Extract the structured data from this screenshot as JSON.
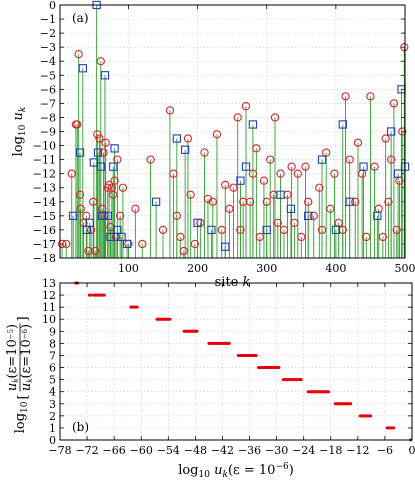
{
  "chart_data": [
    {
      "type": "scatter",
      "panel_label": "(a)",
      "xlabel": "site k",
      "ylabel": "log10 uk",
      "xlim": [
        1,
        500
      ],
      "ylim": [
        -18,
        0
      ],
      "xticks": [
        100,
        200,
        300,
        400,
        500
      ],
      "yticks": [
        0,
        -1,
        -2,
        -3,
        -4,
        -5,
        -6,
        -7,
        -8,
        -9,
        -10,
        -11,
        -12,
        -13,
        -14,
        -15,
        -16,
        -17,
        -18
      ],
      "grid": true,
      "stems": true,
      "colors": {
        "circle": "#d62728",
        "square": "#1f3fbf",
        "stem": "#2e9e2e"
      },
      "series": [
        {
          "marker": "circle",
          "x": [
            4,
            10,
            18,
            24,
            26,
            28,
            30,
            31,
            35,
            39,
            42,
            46,
            49,
            52,
            55,
            58,
            60,
            62,
            64,
            65,
            67,
            70,
            72,
            74,
            76,
            78,
            80,
            82,
            84,
            88,
            92,
            100,
            110,
            120,
            132,
            150,
            160,
            165,
            170,
            175,
            180,
            186,
            190,
            196,
            204,
            210,
            215,
            222,
            228,
            235,
            240,
            246,
            252,
            258,
            262,
            266,
            270,
            276,
            280,
            285,
            290,
            296,
            300,
            305,
            310,
            312,
            316,
            320,
            325,
            330,
            336,
            340,
            345,
            350,
            356,
            360,
            368,
            376,
            380,
            386,
            392,
            398,
            404,
            410,
            414,
            420,
            428,
            432,
            438,
            444,
            450,
            456,
            462,
            468,
            472,
            476,
            480,
            484,
            488,
            492,
            496,
            499
          ],
          "y": [
            -17,
            -17,
            -12,
            -8.5,
            -8.5,
            -3.5,
            -13.5,
            -14.5,
            -15.5,
            -15,
            -17.5,
            -16,
            -14,
            -17.5,
            -9.2,
            -9.5,
            -4,
            -14.5,
            -10.5,
            -15,
            -9.8,
            -13,
            -12.8,
            -15.8,
            -13,
            -13.5,
            -12.5,
            -16.5,
            -11,
            -15,
            -13,
            -17,
            -14.5,
            -17,
            -11,
            -16,
            -7.5,
            -12,
            -15,
            -16.5,
            -17.5,
            -9.5,
            -13.5,
            -17,
            -15.5,
            -10.5,
            -13.8,
            -14,
            -9.2,
            -16,
            -12.8,
            -14.5,
            -13,
            -8,
            -16,
            -14,
            -7.2,
            -14,
            -12,
            -10.2,
            -16.5,
            -12.5,
            -14,
            -11,
            -13.5,
            -8,
            -15.5,
            -12,
            -16,
            -13.5,
            -11.5,
            -15.5,
            -12,
            -16.5,
            -11.5,
            -14,
            -15,
            -13,
            -16,
            -10.5,
            -14.5,
            -12,
            -15.5,
            -16,
            -6.5,
            -11,
            -14,
            -9.8,
            -12,
            -16.5,
            -6.5,
            -11.5,
            -14.5,
            -16.5,
            -9.5,
            -14,
            -11,
            -7,
            -16,
            -12.5,
            -9,
            -3
          ]
        },
        {
          "marker": "square",
          "x": [
            20,
            30,
            34,
            40,
            44,
            50,
            54,
            56,
            60,
            62,
            66,
            70,
            74,
            78,
            80,
            84,
            90,
            98,
            140,
            170,
            182,
            200,
            220,
            240,
            262,
            270,
            280,
            300,
            320,
            335,
            360,
            380,
            400,
            410,
            420,
            440,
            460,
            480,
            490,
            495,
            500
          ],
          "y": [
            -15,
            -10.5,
            -4.5,
            -16,
            -15.5,
            -11.2,
            0,
            -10.5,
            -11.5,
            -15,
            -5,
            -15,
            -16.5,
            -11.5,
            -10.2,
            -16,
            -16.5,
            -17,
            -14,
            -9.5,
            -10.3,
            -15.5,
            -16,
            -17.2,
            -12.5,
            -11.5,
            -8.5,
            -16,
            -13.5,
            -14.5,
            -15,
            -11,
            -16,
            -8.5,
            -14,
            -11.5,
            -15,
            -9,
            -12,
            -6,
            -11.5
          ]
        }
      ]
    },
    {
      "type": "scatter",
      "panel_label": "(b)",
      "xlabel": "log10 uk(ε = 10−6)",
      "ylabel_pre": "log10",
      "ylabel_num": "uk(ε=10−5)",
      "ylabel_den": "uk(ε=10−6)",
      "xlim": [
        -78,
        0
      ],
      "ylim": [
        0,
        13
      ],
      "xticks": [
        -78,
        -72,
        -66,
        -60,
        -54,
        -48,
        -42,
        -36,
        -30,
        -24,
        -18,
        -12,
        -6,
        0
      ],
      "yticks": [
        0,
        1,
        2,
        3,
        4,
        5,
        6,
        7,
        8,
        9,
        10,
        11,
        12,
        13
      ],
      "grid": true,
      "colors": {
        "point": "#e8000b"
      },
      "segments": [
        {
          "x0": -74.5,
          "x1": -74.0,
          "y": 13
        },
        {
          "x0": -71.5,
          "x1": -71.0,
          "y": 12
        },
        {
          "x0": -70.5,
          "x1": -68.0,
          "y": 12
        },
        {
          "x0": -62.3,
          "x1": -60.7,
          "y": 11
        },
        {
          "x0": -56.5,
          "x1": -53.5,
          "y": 10
        },
        {
          "x0": -50.5,
          "x1": -47.5,
          "y": 9
        },
        {
          "x0": -45.0,
          "x1": -40.5,
          "y": 8
        },
        {
          "x0": -38.5,
          "x1": -34.5,
          "y": 7
        },
        {
          "x0": -34.0,
          "x1": -29.5,
          "y": 6
        },
        {
          "x0": -28.5,
          "x1": -24.5,
          "y": 5
        },
        {
          "x0": -23.0,
          "x1": -18.5,
          "y": 4
        },
        {
          "x0": -17.0,
          "x1": -13.5,
          "y": 3
        },
        {
          "x0": -11.5,
          "x1": -9.0,
          "y": 2
        },
        {
          "x0": -5.5,
          "x1": -4.0,
          "y": 1
        },
        {
          "x0": -0.3,
          "x1": -0.2,
          "y": 0
        }
      ]
    }
  ]
}
